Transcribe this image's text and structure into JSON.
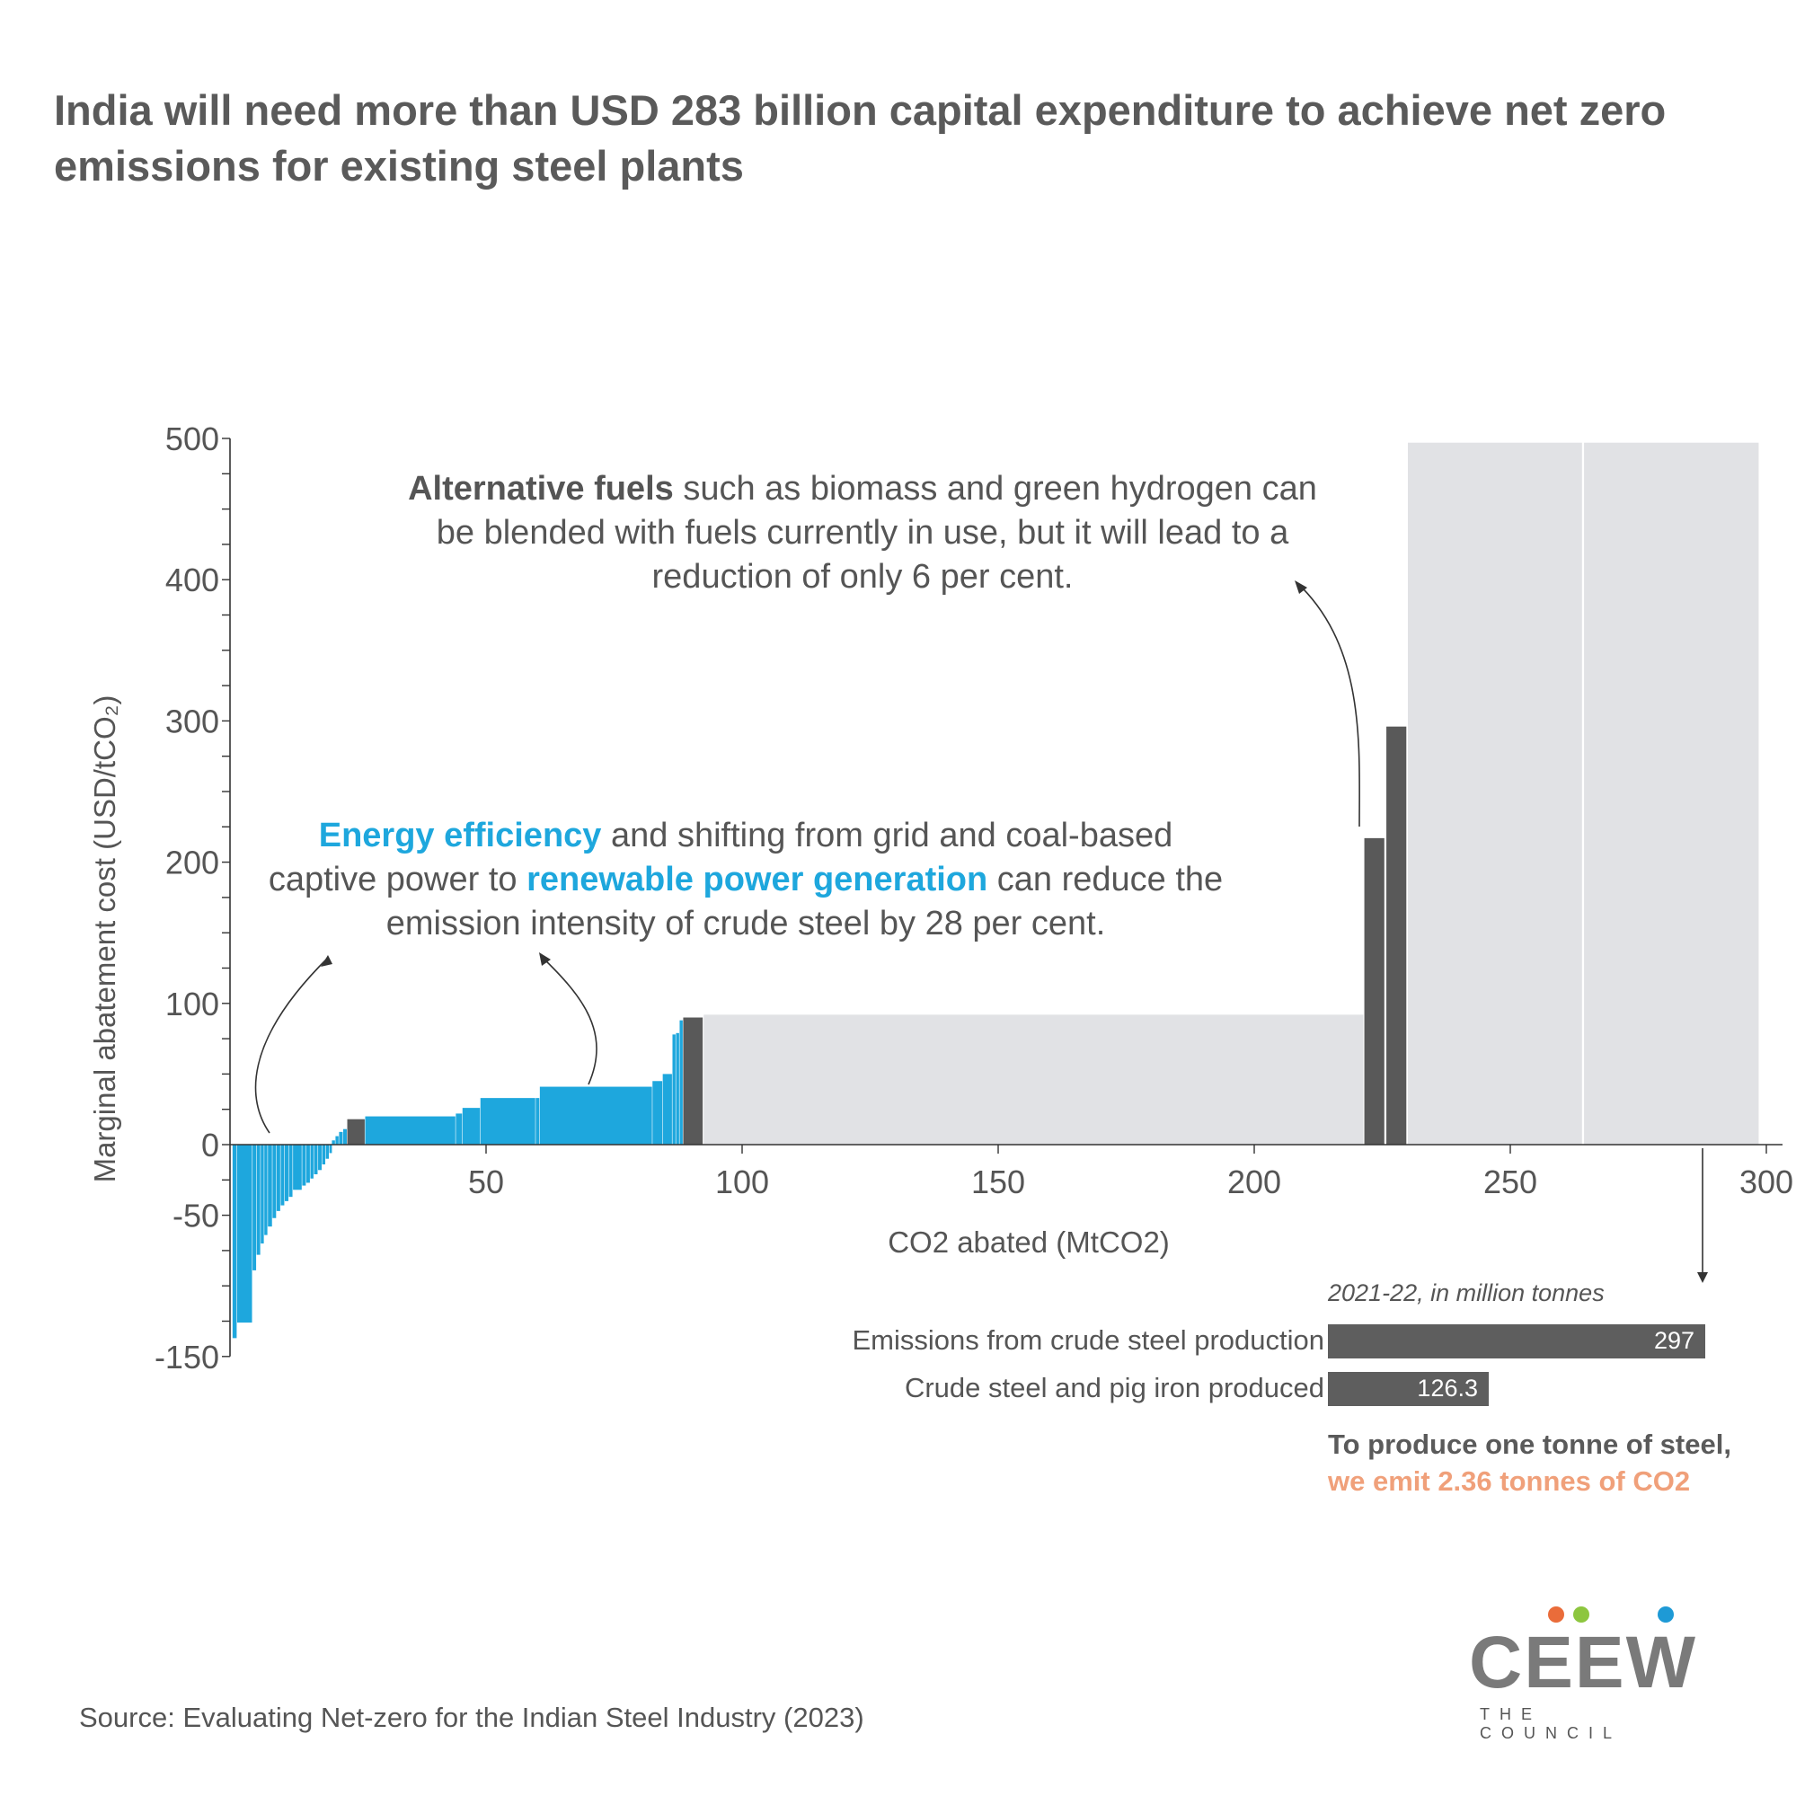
{
  "title": "India will need more than USD 283 billion capital expenditure to achieve net zero emissions for existing steel plants",
  "colors": {
    "efficiency": "#1ea7dd",
    "dark": "#595959",
    "light": "#e1e2e5",
    "accent": "#f0a07a"
  },
  "annotations": {
    "efficiency": {
      "hl1": "Energy efficiency",
      "t1": " and shifting from grid and coal-based captive power to ",
      "hl2": "renewable power generation",
      "t2": " can reduce the emission intensity of crude steel by 28 per cent."
    },
    "alt_fuels": {
      "bold": "Alternative fuels",
      "rest": " such as biomass and green hydrogen can be blended with fuels currently in use, but it will lead to a reduction of only 6 per cent."
    }
  },
  "chart_data": {
    "type": "bar",
    "subtype": "marginal abatement cost curve",
    "xlabel": "CO2 abated (MtCO2)",
    "ylabel": "Marginal abatement cost (USD/tCO₂)",
    "xlim": [
      0,
      300
    ],
    "ylim": [
      -150,
      500
    ],
    "x_ticks": [
      50,
      100,
      150,
      200,
      250,
      300
    ],
    "y_ticks": [
      500,
      400,
      300,
      200,
      100,
      0,
      -50,
      -150
    ],
    "bars": [
      {
        "x0": 0.5,
        "x1": 1.3,
        "y": -137,
        "color": "efficiency"
      },
      {
        "x0": 1.4,
        "x1": 4.3,
        "y": -126,
        "color": "efficiency"
      },
      {
        "x0": 4.4,
        "x1": 5.1,
        "y": -89,
        "color": "efficiency"
      },
      {
        "x0": 5.2,
        "x1": 5.9,
        "y": -78,
        "color": "efficiency"
      },
      {
        "x0": 6.0,
        "x1": 6.6,
        "y": -70,
        "color": "efficiency"
      },
      {
        "x0": 6.7,
        "x1": 7.3,
        "y": -64,
        "color": "efficiency"
      },
      {
        "x0": 7.4,
        "x1": 8.2,
        "y": -58,
        "color": "efficiency"
      },
      {
        "x0": 8.3,
        "x1": 9.0,
        "y": -52,
        "color": "efficiency"
      },
      {
        "x0": 9.1,
        "x1": 9.8,
        "y": -47,
        "color": "efficiency"
      },
      {
        "x0": 9.9,
        "x1": 10.6,
        "y": -43,
        "color": "efficiency"
      },
      {
        "x0": 10.7,
        "x1": 11.4,
        "y": -40,
        "color": "efficiency"
      },
      {
        "x0": 11.5,
        "x1": 12.2,
        "y": -37,
        "color": "efficiency"
      },
      {
        "x0": 12.3,
        "x1": 14.0,
        "y": -32,
        "color": "efficiency"
      },
      {
        "x0": 14.1,
        "x1": 14.8,
        "y": -29,
        "color": "efficiency"
      },
      {
        "x0": 14.9,
        "x1": 15.6,
        "y": -27,
        "color": "efficiency"
      },
      {
        "x0": 15.7,
        "x1": 16.3,
        "y": -24,
        "color": "efficiency"
      },
      {
        "x0": 16.4,
        "x1": 17.1,
        "y": -21,
        "color": "efficiency"
      },
      {
        "x0": 17.2,
        "x1": 17.9,
        "y": -18,
        "color": "efficiency"
      },
      {
        "x0": 18.0,
        "x1": 18.6,
        "y": -14,
        "color": "efficiency"
      },
      {
        "x0": 18.7,
        "x1": 19.3,
        "y": -10,
        "color": "efficiency"
      },
      {
        "x0": 19.4,
        "x1": 19.9,
        "y": -6,
        "color": "efficiency"
      },
      {
        "x0": 19.9,
        "x1": 20.5,
        "y": 3,
        "color": "efficiency"
      },
      {
        "x0": 20.6,
        "x1": 21.2,
        "y": 6,
        "color": "efficiency"
      },
      {
        "x0": 21.3,
        "x1": 22.0,
        "y": 9,
        "color": "efficiency"
      },
      {
        "x0": 22.1,
        "x1": 22.8,
        "y": 11,
        "color": "efficiency"
      },
      {
        "x0": 22.9,
        "x1": 26.3,
        "y": 18,
        "color": "dark"
      },
      {
        "x0": 26.4,
        "x1": 44.0,
        "y": 20,
        "color": "efficiency"
      },
      {
        "x0": 44.1,
        "x1": 45.3,
        "y": 22,
        "color": "efficiency"
      },
      {
        "x0": 45.4,
        "x1": 48.8,
        "y": 26,
        "color": "efficiency"
      },
      {
        "x0": 48.9,
        "x1": 59.6,
        "y": 33,
        "color": "efficiency"
      },
      {
        "x0": 59.7,
        "x1": 60.4,
        "y": 33,
        "color": "efficiency"
      },
      {
        "x0": 60.5,
        "x1": 82.4,
        "y": 41,
        "color": "efficiency"
      },
      {
        "x0": 82.5,
        "x1": 84.4,
        "y": 45,
        "color": "efficiency"
      },
      {
        "x0": 84.5,
        "x1": 86.3,
        "y": 50,
        "color": "efficiency"
      },
      {
        "x0": 86.4,
        "x1": 87.0,
        "y": 78,
        "color": "efficiency"
      },
      {
        "x0": 87.1,
        "x1": 87.7,
        "y": 79,
        "color": "efficiency"
      },
      {
        "x0": 87.8,
        "x1": 88.4,
        "y": 88,
        "color": "efficiency"
      },
      {
        "x0": 88.5,
        "x1": 92.3,
        "y": 90,
        "color": "dark"
      },
      {
        "x0": 92.5,
        "x1": 221.3,
        "y": 92,
        "color": "light"
      },
      {
        "x0": 221.5,
        "x1": 225.4,
        "y": 217,
        "color": "dark"
      },
      {
        "x0": 225.8,
        "x1": 229.7,
        "y": 296,
        "color": "dark"
      },
      {
        "x0": 230.0,
        "x1": 264.0,
        "y": 497,
        "color": "light"
      },
      {
        "x0": 264.4,
        "x1": 298.5,
        "y": 497,
        "color": "light"
      }
    ]
  },
  "summary": {
    "title": "2021-22, in million tonnes",
    "items": [
      {
        "label": "Emissions from crude steel production",
        "value": 297,
        "value_text": "297"
      },
      {
        "label": "Crude steel and pig iron produced",
        "value": 126.3,
        "value_text": "126.3"
      }
    ],
    "note_line1": "To produce one tonne of steel,",
    "note_line2": "we emit 2.36 tonnes of CO2"
  },
  "source": "Source: Evaluating Net-zero for the Indian Steel Industry (2023)",
  "logo": {
    "text": "CEEW",
    "subtitle": "THE COUNCIL",
    "dot_colors": [
      "#ea6c3a",
      "#8dc63f",
      "#1e9ad6"
    ]
  }
}
